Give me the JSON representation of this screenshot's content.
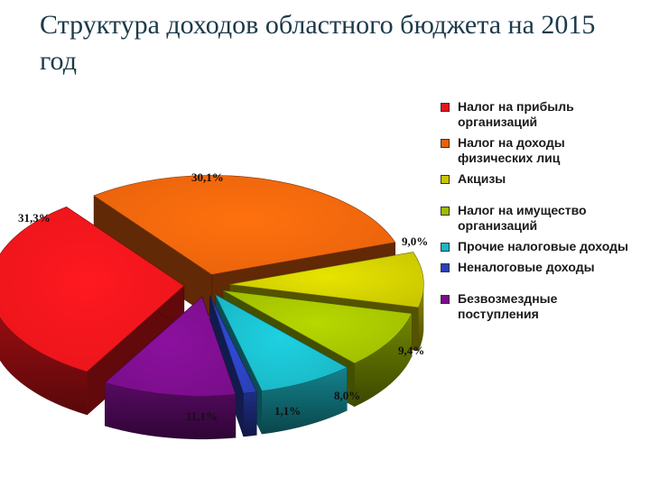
{
  "title": "Структура доходов областного бюджета на 2015 год",
  "chart_data": {
    "type": "pie",
    "title": "Структура доходов областного бюджета на 2015 год",
    "slices": [
      {
        "label": "Налог на прибыль организаций",
        "value": 31.3,
        "value_label": "31,3%",
        "color": "#e8151b"
      },
      {
        "label": "Налог на доходы физических лиц",
        "value": 30.1,
        "value_label": "30,1%",
        "color": "#e8620c"
      },
      {
        "label": "Акцизы",
        "value": 9.0,
        "value_label": "9,0%",
        "color": "#c9c600"
      },
      {
        "label": "Налог на имущество организаций",
        "value": 9.4,
        "value_label": "9,4%",
        "color": "#9fbc00"
      },
      {
        "label": "Прочие налоговые доходы",
        "value": 8.0,
        "value_label": "8,0%",
        "color": "#1ab6c4"
      },
      {
        "label": "Неналоговые доходы",
        "value": 1.1,
        "value_label": "1,1%",
        "color": "#2a40b8"
      },
      {
        "label": "Безвозмездные поступления",
        "value": 11.1,
        "value_label": "11,1%",
        "color": "#7a0e8a"
      }
    ],
    "style": "3d-exploded",
    "legend_position": "right"
  }
}
